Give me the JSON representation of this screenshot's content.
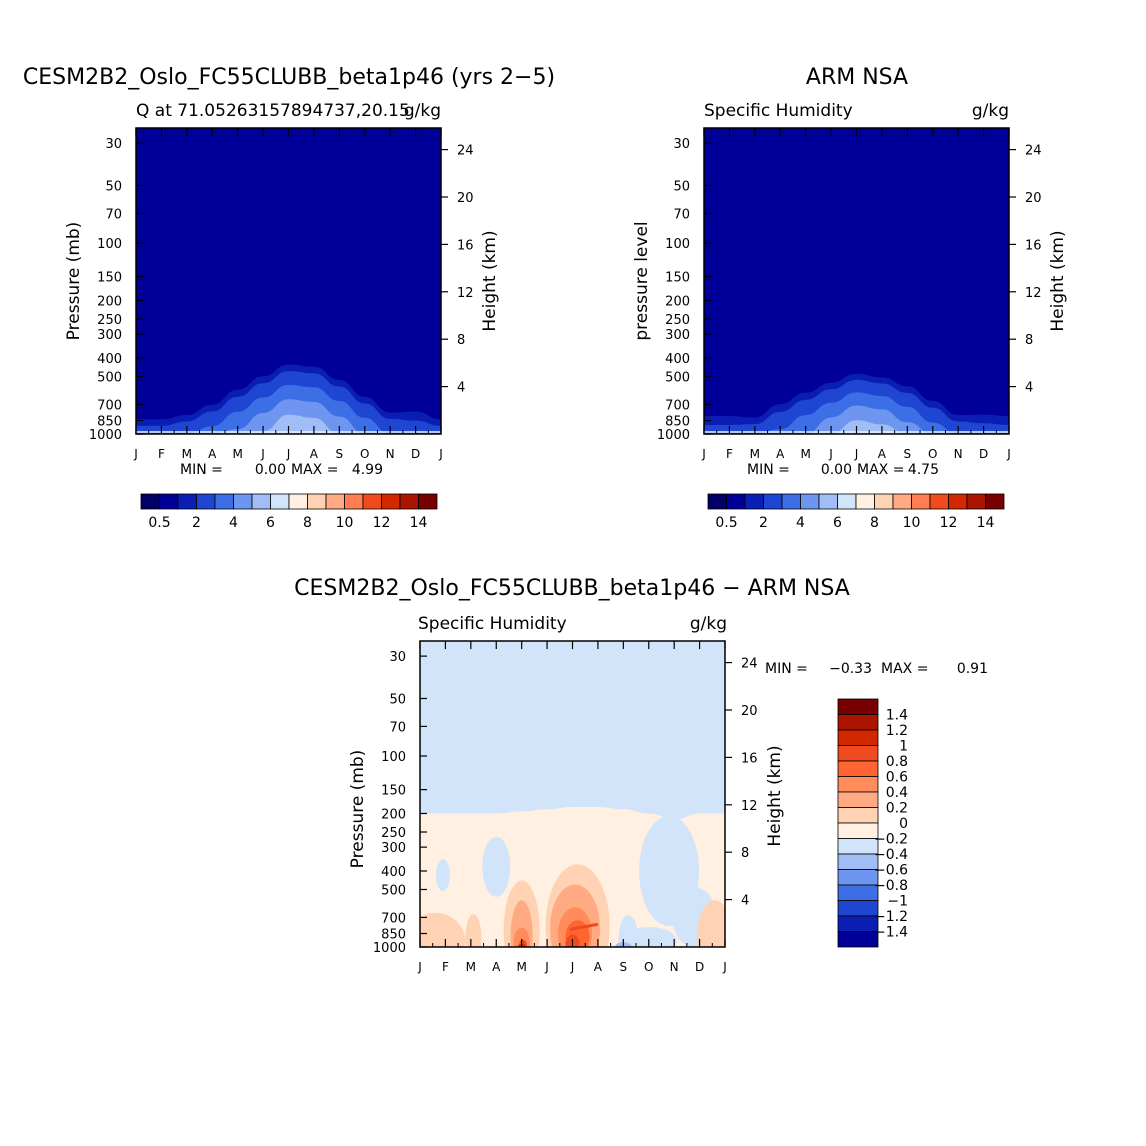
{
  "chart_data": [
    {
      "type": "heatmap",
      "id": "model",
      "title": "CESM2B2_Oslo_FC55CLUBB_beta1p46 (yrs 2−5)",
      "subtitle_left": "Q at 71.05263157894737,20.15",
      "subtitle_right": "g/kg",
      "ylabel": "Pressure (mb)",
      "ylabel_right": "Height (km)",
      "x_ticks": [
        "J",
        "F",
        "M",
        "A",
        "M",
        "J",
        "J",
        "A",
        "S",
        "O",
        "N",
        "D",
        "J"
      ],
      "y_ticks": [
        30,
        50,
        70,
        100,
        150,
        200,
        250,
        300,
        400,
        500,
        700,
        850,
        1000
      ],
      "y_ticks_right": [
        24,
        20,
        16,
        12,
        8,
        4
      ],
      "ylim": [
        1000,
        25
      ],
      "min_label": "MIN =",
      "min_value": "0.00",
      "max_label": "MAX =",
      "max_value": "4.99",
      "colorbar_labels": [
        "0.5",
        "2",
        "4",
        "6",
        "8",
        "10",
        "12",
        "14"
      ],
      "levels": [
        0.5,
        1,
        2,
        3,
        4,
        5,
        6,
        7,
        8,
        9,
        10,
        11,
        12,
        13,
        14
      ],
      "dome_peak_pressure": [
        780,
        780,
        740,
        650,
        540,
        460,
        400,
        410,
        480,
        590,
        720,
        690,
        780
      ],
      "dome_peak_value": [
        1.5,
        1.5,
        1.8,
        2.4,
        3.2,
        4.1,
        4.99,
        4.8,
        3.9,
        2.9,
        2.0,
        1.6,
        1.5
      ]
    },
    {
      "type": "heatmap",
      "id": "obs",
      "title": "ARM NSA",
      "subtitle_left": "Specific Humidity",
      "subtitle_right": "g/kg",
      "ylabel": "pressure level",
      "ylabel_right": "Height (km)",
      "x_ticks": [
        "J",
        "F",
        "M",
        "A",
        "M",
        "J",
        "J",
        "A",
        "S",
        "O",
        "N",
        "D",
        "J"
      ],
      "y_ticks": [
        30,
        50,
        70,
        100,
        150,
        200,
        250,
        300,
        400,
        500,
        700,
        850,
        1000
      ],
      "y_ticks_right": [
        24,
        20,
        16,
        12,
        8,
        4
      ],
      "ylim": [
        1000,
        25
      ],
      "min_label": "MIN =",
      "min_value": "0.00",
      "max_label": "MAX =",
      "max_value": "4.75",
      "colorbar_labels": [
        "0.5",
        "2",
        "4",
        "6",
        "8",
        "10",
        "12",
        "14"
      ],
      "levels": [
        0.5,
        1,
        2,
        3,
        4,
        5,
        6,
        7,
        8,
        9,
        10,
        11,
        12,
        13,
        14
      ],
      "dome_peak_pressure": [
        730,
        730,
        760,
        640,
        560,
        500,
        450,
        470,
        520,
        620,
        740,
        720,
        730
      ],
      "dome_peak_value": [
        1.4,
        1.4,
        1.6,
        2.2,
        3.0,
        3.9,
        4.75,
        4.5,
        3.6,
        2.6,
        1.8,
        1.5,
        1.4
      ]
    },
    {
      "type": "heatmap",
      "id": "diff",
      "title": "CESM2B2_Oslo_FC55CLUBB_beta1p46 − ARM NSA",
      "subtitle_left": "Specific Humidity",
      "subtitle_right": "g/kg",
      "ylabel": "Pressure (mb)",
      "ylabel_right": "Height (km)",
      "x_ticks": [
        "J",
        "F",
        "M",
        "A",
        "M",
        "J",
        "J",
        "A",
        "S",
        "O",
        "N",
        "D",
        "J"
      ],
      "y_ticks": [
        30,
        50,
        70,
        100,
        150,
        200,
        250,
        300,
        400,
        500,
        700,
        850,
        1000
      ],
      "y_ticks_right": [
        24,
        20,
        16,
        12,
        8,
        4
      ],
      "ylim": [
        1000,
        25
      ],
      "min_label": "MIN =",
      "min_value": "−0.33",
      "max_label": "MAX =",
      "max_value": "0.91",
      "colorbar_labels": [
        "1.4",
        "1.2",
        "1",
        "0.8",
        "0.6",
        "0.4",
        "0.2",
        "0",
        "−0.2",
        "−0.4",
        "−0.6",
        "−0.8",
        "−1",
        "−1.2",
        "−1.4"
      ],
      "levels": [
        -1.4,
        -1.2,
        -1,
        -0.8,
        -0.6,
        -0.4,
        -0.2,
        0,
        0.2,
        0.4,
        0.6,
        0.8,
        1,
        1.2,
        1.4
      ],
      "positive_top_pressure": [
        200,
        200,
        200,
        200,
        195,
        190,
        185,
        185,
        190,
        200,
        215,
        200,
        200
      ],
      "features": [
        {
          "month": 0.9,
          "pressure": 420,
          "value": -0.05
        },
        {
          "month": 3.0,
          "pressure": 380,
          "value": -0.05
        },
        {
          "month": 9.8,
          "pressure": 400,
          "value": -0.05
        },
        {
          "month": 8.2,
          "pressure": 920,
          "value": -0.05
        },
        {
          "month": 4.0,
          "pressure": 920,
          "value": 0.7
        },
        {
          "month": 6.2,
          "pressure": 850,
          "value": 0.91
        },
        {
          "month": 1.0,
          "pressure": 930,
          "value": 0.3
        },
        {
          "month": 11.5,
          "pressure": 900,
          "value": 0.25
        }
      ]
    }
  ],
  "colors": {
    "seq": [
      "#000066",
      "#000099",
      "#0a1eb4",
      "#1e46d2",
      "#3c6ee6",
      "#6e96f0",
      "#a0bef5",
      "#d2e4fa",
      "#fff0e1",
      "#ffd2b4",
      "#ffaa82",
      "#ff7d50",
      "#f04b1e",
      "#d22800",
      "#aa1400",
      "#780000"
    ],
    "div": [
      "#780000",
      "#aa1400",
      "#d22800",
      "#f04b1e",
      "#ff6432",
      "#ff8c5a",
      "#ffaa82",
      "#ffd2b4",
      "#fff0e1",
      "#d2e4fa",
      "#a0bef5",
      "#6e96f0",
      "#3c6ee6",
      "#1e46d2",
      "#0a1eb4",
      "#000099"
    ]
  }
}
